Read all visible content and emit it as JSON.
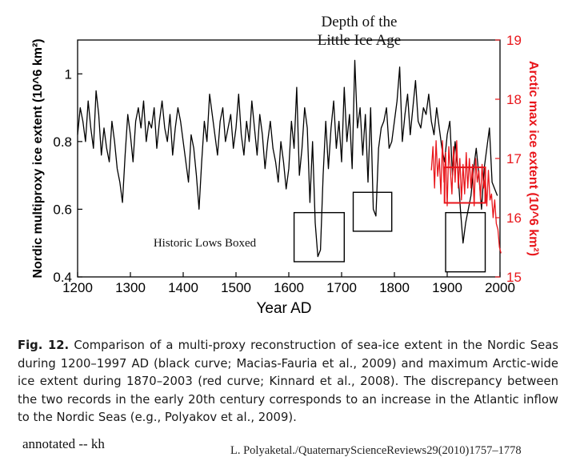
{
  "chart_data": {
    "type": "line",
    "title_lines": [
      "Depth of the",
      "Little Ice Age"
    ],
    "xlabel": "Year AD",
    "xlim": [
      1200,
      2000
    ],
    "x_ticks": [
      "1200",
      "1300",
      "1400",
      "1500",
      "1600",
      "1700",
      "1800",
      "1900",
      "2000"
    ],
    "left_axis": {
      "label": "Nordic multiproxy ice extent (10^6 km²)",
      "ylim": [
        0.4,
        1.1
      ],
      "ticks": [
        "0.4",
        "0.6",
        "0.8",
        "1"
      ]
    },
    "right_axis": {
      "label": "Arctic max ice extent (10^6 km²)",
      "ylim": [
        15,
        19
      ],
      "ticks": [
        "15",
        "16",
        "17",
        "18",
        "19"
      ],
      "color": "#e8161b"
    },
    "series": [
      {
        "name": "Nordic multiproxy (black)",
        "color": "#000000",
        "axis": "left",
        "x": [
          1200,
          1205,
          1210,
          1215,
          1220,
          1225,
          1230,
          1235,
          1240,
          1245,
          1250,
          1255,
          1260,
          1265,
          1270,
          1275,
          1280,
          1285,
          1290,
          1295,
          1300,
          1305,
          1310,
          1315,
          1320,
          1325,
          1330,
          1335,
          1340,
          1345,
          1350,
          1355,
          1360,
          1365,
          1370,
          1375,
          1380,
          1385,
          1390,
          1395,
          1400,
          1405,
          1410,
          1415,
          1420,
          1425,
          1430,
          1435,
          1440,
          1445,
          1450,
          1455,
          1460,
          1465,
          1470,
          1475,
          1480,
          1485,
          1490,
          1495,
          1500,
          1505,
          1510,
          1515,
          1520,
          1525,
          1530,
          1535,
          1540,
          1545,
          1550,
          1555,
          1560,
          1565,
          1570,
          1575,
          1580,
          1585,
          1590,
          1595,
          1600,
          1605,
          1610,
          1615,
          1620,
          1625,
          1630,
          1635,
          1640,
          1645,
          1650,
          1655,
          1660,
          1665,
          1670,
          1675,
          1680,
          1685,
          1690,
          1695,
          1700,
          1705,
          1710,
          1715,
          1720,
          1725,
          1730,
          1735,
          1740,
          1745,
          1750,
          1755,
          1760,
          1765,
          1770,
          1775,
          1780,
          1785,
          1790,
          1795,
          1800,
          1805,
          1810,
          1815,
          1820,
          1825,
          1830,
          1835,
          1840,
          1845,
          1850,
          1855,
          1860,
          1865,
          1870,
          1875,
          1880,
          1885,
          1890,
          1895,
          1900,
          1905,
          1910,
          1915,
          1920,
          1925,
          1930,
          1935,
          1940,
          1945,
          1950,
          1955,
          1960,
          1965,
          1970,
          1975,
          1980,
          1985,
          1990,
          1995
        ],
        "y": [
          0.82,
          0.9,
          0.86,
          0.8,
          0.92,
          0.84,
          0.78,
          0.95,
          0.88,
          0.76,
          0.84,
          0.78,
          0.74,
          0.86,
          0.8,
          0.72,
          0.68,
          0.62,
          0.76,
          0.88,
          0.82,
          0.74,
          0.86,
          0.9,
          0.84,
          0.92,
          0.8,
          0.86,
          0.84,
          0.9,
          0.78,
          0.86,
          0.92,
          0.84,
          0.8,
          0.88,
          0.76,
          0.84,
          0.9,
          0.86,
          0.8,
          0.74,
          0.68,
          0.82,
          0.78,
          0.7,
          0.6,
          0.74,
          0.86,
          0.8,
          0.94,
          0.88,
          0.82,
          0.76,
          0.86,
          0.9,
          0.8,
          0.84,
          0.88,
          0.78,
          0.84,
          0.94,
          0.82,
          0.76,
          0.86,
          0.8,
          0.92,
          0.84,
          0.76,
          0.88,
          0.82,
          0.72,
          0.8,
          0.86,
          0.78,
          0.74,
          0.68,
          0.8,
          0.74,
          0.66,
          0.72,
          0.86,
          0.78,
          0.96,
          0.7,
          0.78,
          0.9,
          0.84,
          0.62,
          0.8,
          0.56,
          0.46,
          0.48,
          0.7,
          0.86,
          0.72,
          0.84,
          0.92,
          0.78,
          0.86,
          0.74,
          0.96,
          0.8,
          0.88,
          0.72,
          1.04,
          0.84,
          0.9,
          0.76,
          0.88,
          0.68,
          0.9,
          0.6,
          0.58,
          0.78,
          0.84,
          0.86,
          0.9,
          0.78,
          0.8,
          0.86,
          0.92,
          1.02,
          0.8,
          0.88,
          0.94,
          0.82,
          0.9,
          0.98,
          0.86,
          0.84,
          0.9,
          0.88,
          0.94,
          0.86,
          0.82,
          0.9,
          0.84,
          0.78,
          0.74,
          0.82,
          0.86,
          0.7,
          0.8,
          0.72,
          0.6,
          0.5,
          0.56,
          0.6,
          0.64,
          0.72,
          0.78,
          0.7,
          0.6,
          0.72,
          0.78,
          0.84,
          0.68,
          0.66,
          0.64
        ]
      },
      {
        "name": "Arctic max ice extent (red)",
        "color": "#e8161b",
        "axis": "right",
        "x": [
          1870,
          1873,
          1876,
          1879,
          1882,
          1885,
          1888,
          1891,
          1894,
          1897,
          1900,
          1903,
          1906,
          1909,
          1912,
          1915,
          1918,
          1921,
          1924,
          1927,
          1930,
          1933,
          1936,
          1939,
          1942,
          1945,
          1948,
          1951,
          1954,
          1957,
          1960,
          1963,
          1966,
          1969,
          1972,
          1975,
          1978,
          1981,
          1984,
          1987,
          1990,
          1993,
          1996,
          1999,
          2002
        ],
        "y": [
          16.8,
          17.2,
          16.5,
          17.3,
          16.7,
          17.0,
          16.4,
          17.3,
          16.6,
          17.1,
          16.2,
          17.2,
          16.8,
          16.4,
          17.2,
          16.6,
          17.3,
          16.5,
          17.0,
          16.3,
          16.9,
          16.4,
          17.1,
          16.5,
          17.0,
          16.5,
          16.9,
          16.2,
          17.0,
          16.6,
          16.8,
          16.3,
          16.9,
          16.5,
          16.7,
          16.2,
          16.8,
          16.3,
          16.4,
          16.0,
          16.3,
          15.9,
          15.8,
          15.5,
          15.4
        ]
      }
    ],
    "annotations": [
      {
        "text": "Historic Lows Boxed"
      }
    ],
    "boxes": [
      {
        "name": "low-box-1650",
        "x": [
          1610,
          1705
        ],
        "y_left": [
          0.445,
          0.59
        ],
        "color": "#000000"
      },
      {
        "name": "low-box-1760",
        "x": [
          1722,
          1795
        ],
        "y_left": [
          0.535,
          0.65
        ],
        "color": "#000000"
      },
      {
        "name": "low-box-1930",
        "x": [
          1897,
          1972
        ],
        "y_left": [
          0.415,
          0.59
        ],
        "color": "#000000"
      },
      {
        "name": "red-box-1900s",
        "x": [
          1895,
          1972
        ],
        "y_right": [
          16.25,
          16.85
        ],
        "color": "#e8161b"
      }
    ]
  },
  "caption": {
    "label": "Fig. 12.",
    "text": "Comparison of a multi-proxy reconstruction of sea-ice extent in the Nordic Seas during 1200–1997 AD (black curve; Macias-Fauria et al., 2009) and maximum Arctic-wide ice extent during 1870–2003 (red curve; Kinnard et al., 2008). The discrepancy between the two records in the early 20th century corresponds to an increase in the Atlantic inflow to the Nordic Seas (e.g., Polyakov et al., 2009)."
  },
  "footer": {
    "annotation": "annotated -- kh",
    "citation": "L. Polyaketal./QuaternaryScienceReviews29(2010)1757–1778"
  }
}
